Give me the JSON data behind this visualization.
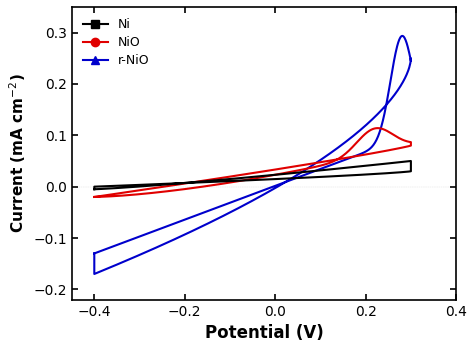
{
  "title": "",
  "xlabel": "Potential (V)",
  "ylabel": "Current (mA cm⁻²)",
  "xlim": [
    -0.45,
    0.4
  ],
  "ylim": [
    -0.22,
    0.35
  ],
  "xticks": [
    -0.4,
    -0.2,
    0.0,
    0.2,
    0.4
  ],
  "yticks": [
    -0.2,
    -0.1,
    0.0,
    0.1,
    0.2,
    0.3
  ],
  "colors": {
    "Ni": "#000000",
    "NiO": "#e00000",
    "r-NiO": "#0000cc"
  },
  "legend_labels": [
    "Ni",
    "NiO",
    "r-NiO"
  ],
  "legend_markers": [
    "s",
    "o",
    "^"
  ]
}
